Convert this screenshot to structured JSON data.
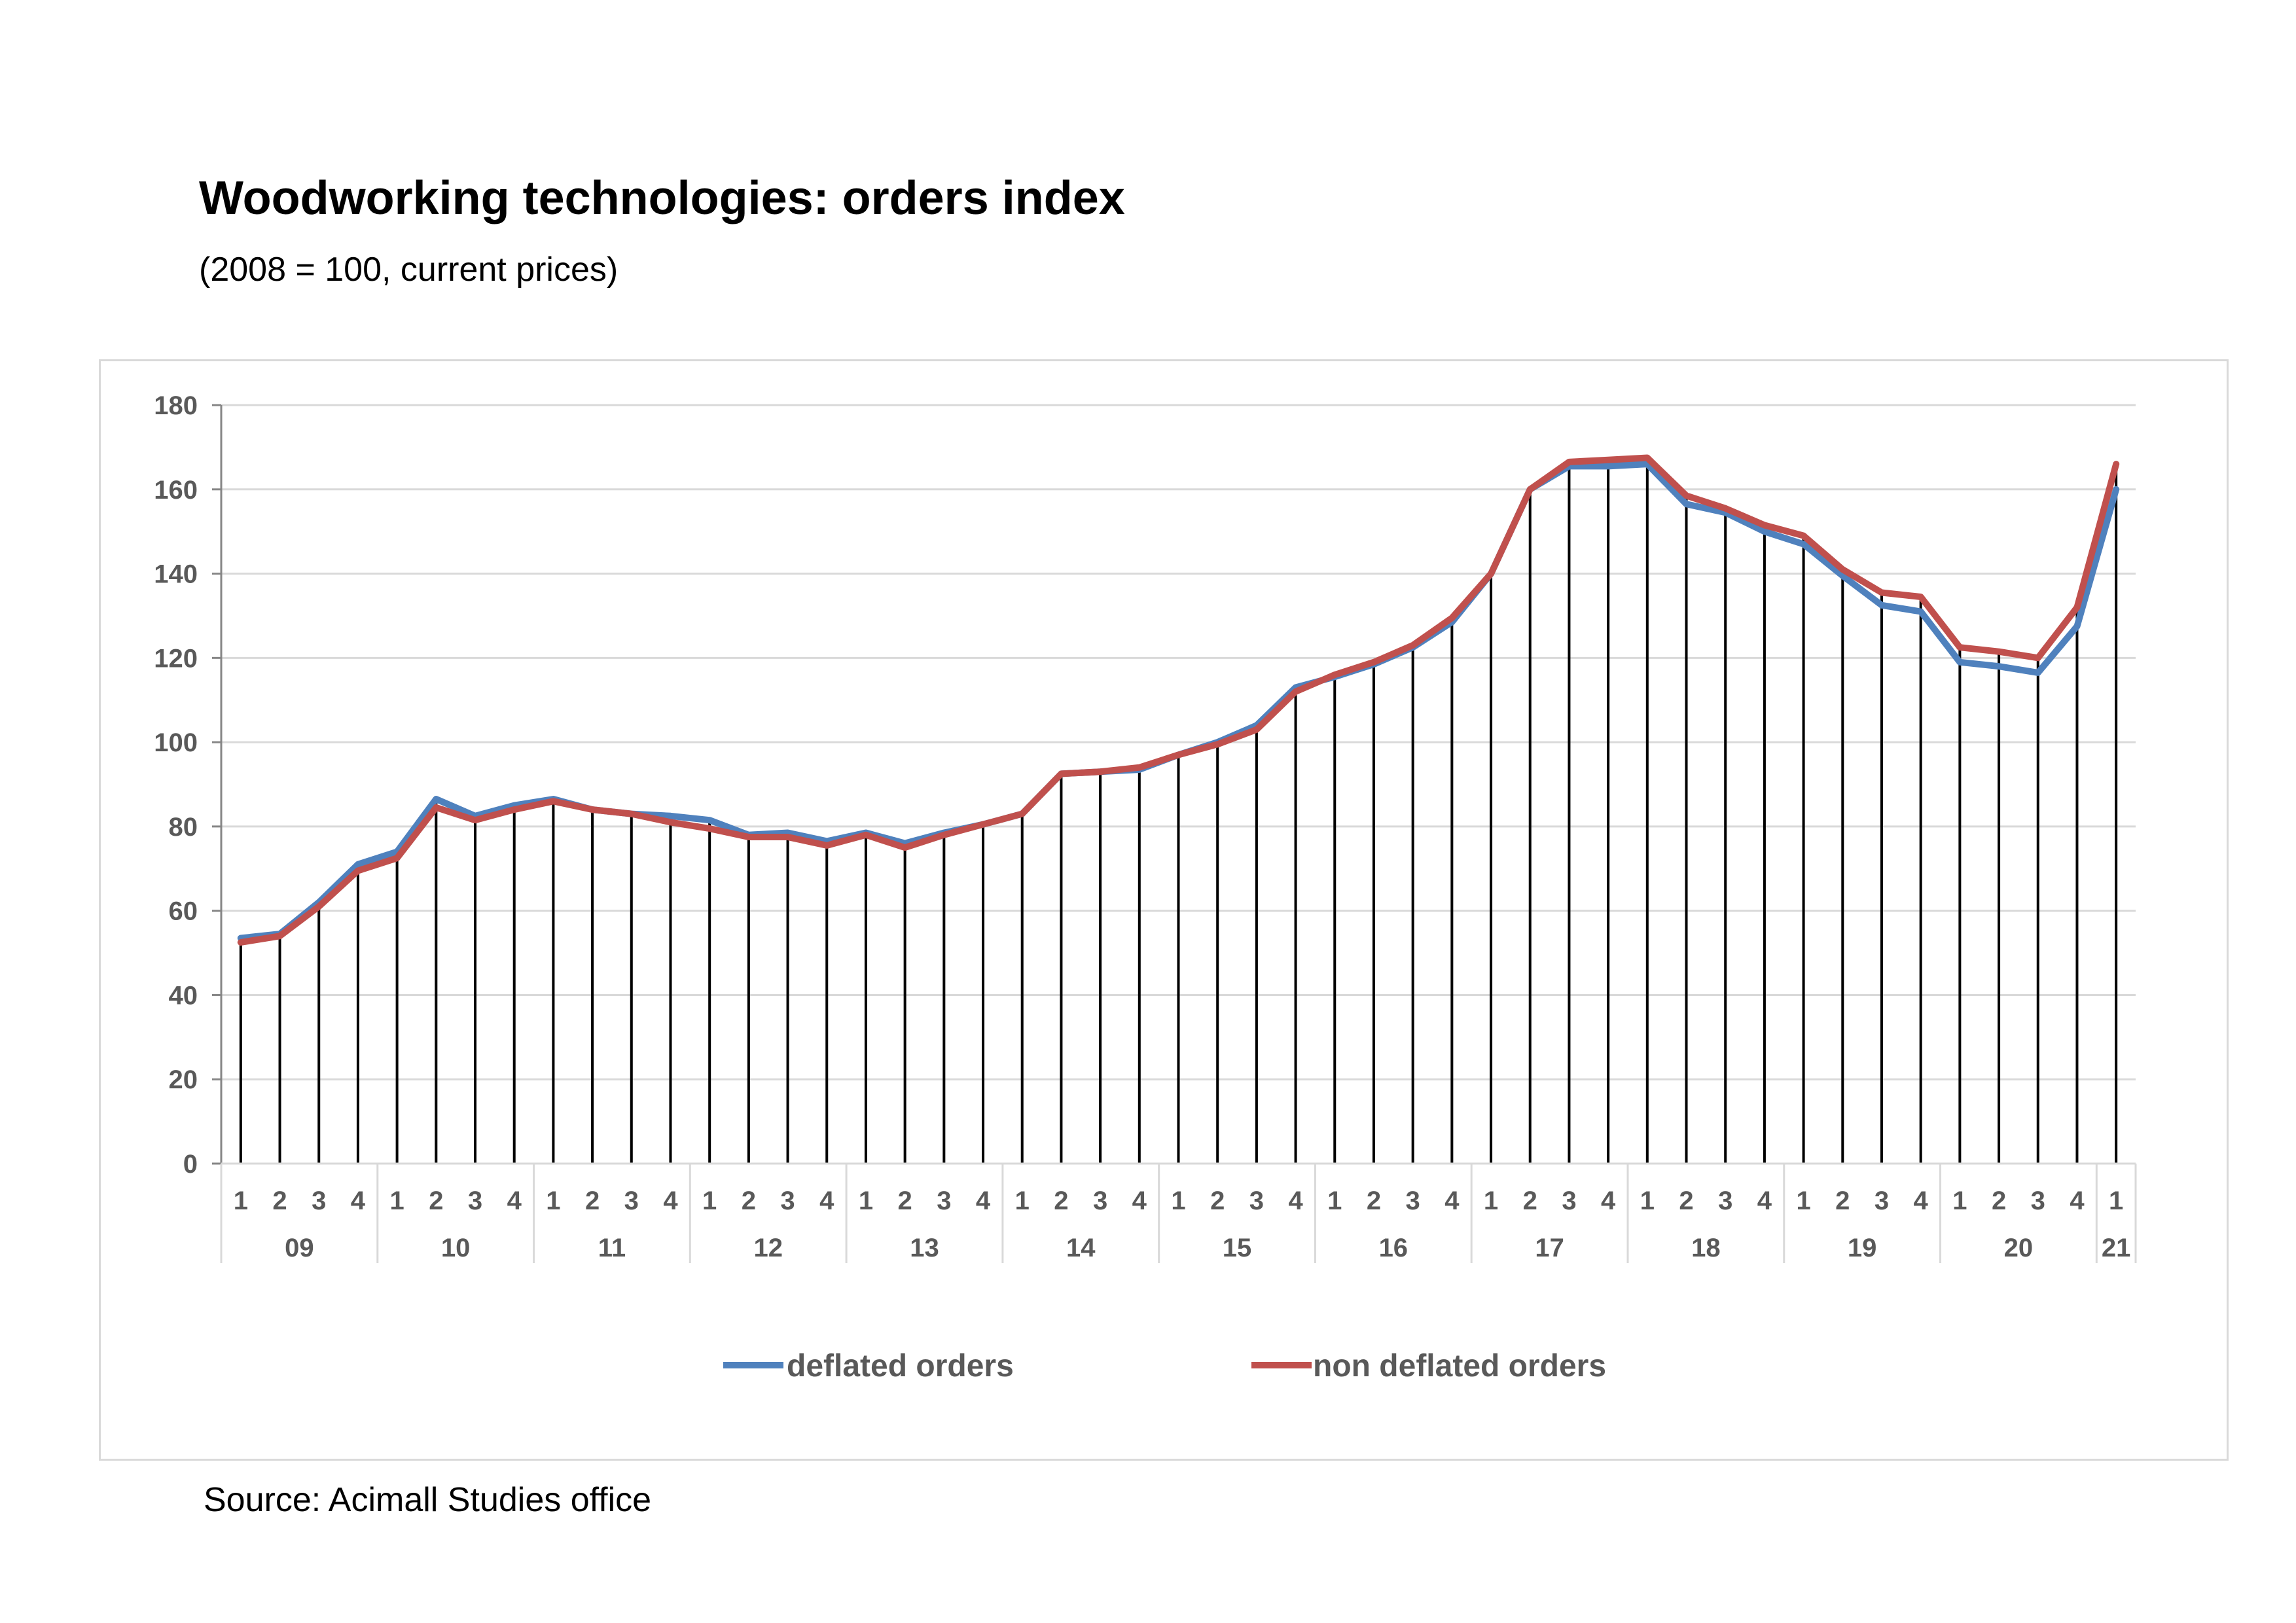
{
  "title": "Woodworking technologies: orders index",
  "subtitle": "(2008 = 100, current prices)",
  "source": "Source: Acimall Studies office",
  "chart_data": {
    "type": "line",
    "title": "Woodworking technologies: orders index",
    "subtitle": "(2008 = 100, current prices)",
    "xlabel": "",
    "ylabel": "",
    "ylim": [
      0,
      180
    ],
    "yticks": [
      "0",
      "20",
      "40",
      "60",
      "80",
      "100",
      "120",
      "140",
      "160",
      "180"
    ],
    "grid": true,
    "legend_position": "bottom",
    "years": [
      {
        "label": "09",
        "quarters": [
          "1",
          "2",
          "3",
          "4"
        ]
      },
      {
        "label": "10",
        "quarters": [
          "1",
          "2",
          "3",
          "4"
        ]
      },
      {
        "label": "11",
        "quarters": [
          "1",
          "2",
          "3",
          "4"
        ]
      },
      {
        "label": "12",
        "quarters": [
          "1",
          "2",
          "3",
          "4"
        ]
      },
      {
        "label": "13",
        "quarters": [
          "1",
          "2",
          "3",
          "4"
        ]
      },
      {
        "label": "14",
        "quarters": [
          "1",
          "2",
          "3",
          "4"
        ]
      },
      {
        "label": "15",
        "quarters": [
          "1",
          "2",
          "3",
          "4"
        ]
      },
      {
        "label": "16",
        "quarters": [
          "1",
          "2",
          "3",
          "4"
        ]
      },
      {
        "label": "17",
        "quarters": [
          "1",
          "2",
          "3",
          "4"
        ]
      },
      {
        "label": "18",
        "quarters": [
          "1",
          "2",
          "3",
          "4"
        ]
      },
      {
        "label": "19",
        "quarters": [
          "1",
          "2",
          "3",
          "4"
        ]
      },
      {
        "label": "20",
        "quarters": [
          "1",
          "2",
          "3",
          "4"
        ]
      },
      {
        "label": "21",
        "quarters": [
          "1"
        ]
      }
    ],
    "series": [
      {
        "name": "deflated orders",
        "color": "#4f81bd",
        "values": [
          53.5,
          54.5,
          62,
          71,
          74,
          86.5,
          82.5,
          85,
          86.5,
          84,
          83,
          82.5,
          81.5,
          78,
          78.5,
          76.5,
          78.5,
          76,
          78.5,
          80.5,
          83,
          92.5,
          93,
          93.5,
          97,
          100,
          104,
          113,
          115.5,
          118.5,
          122.5,
          128.5,
          140,
          160,
          165.5,
          165.5,
          166,
          156.5,
          154.5,
          150,
          147,
          139.5,
          132.5,
          131,
          119,
          118,
          116.5,
          127.5,
          160
        ]
      },
      {
        "name": "non deflated orders",
        "color": "#c0504d",
        "values": [
          52.5,
          54,
          61,
          69.5,
          72.5,
          84.5,
          81.5,
          84,
          86,
          84,
          83,
          81,
          79.5,
          77.5,
          77.5,
          75.5,
          78,
          75,
          78,
          80.5,
          83,
          92.5,
          93,
          94,
          97,
          99.5,
          103,
          112,
          116,
          119,
          123,
          129.5,
          140,
          160,
          166.5,
          167,
          167.5,
          158.5,
          155.5,
          151.5,
          149,
          141,
          135.5,
          134.5,
          122.5,
          121.5,
          120,
          132,
          166
        ]
      }
    ]
  }
}
